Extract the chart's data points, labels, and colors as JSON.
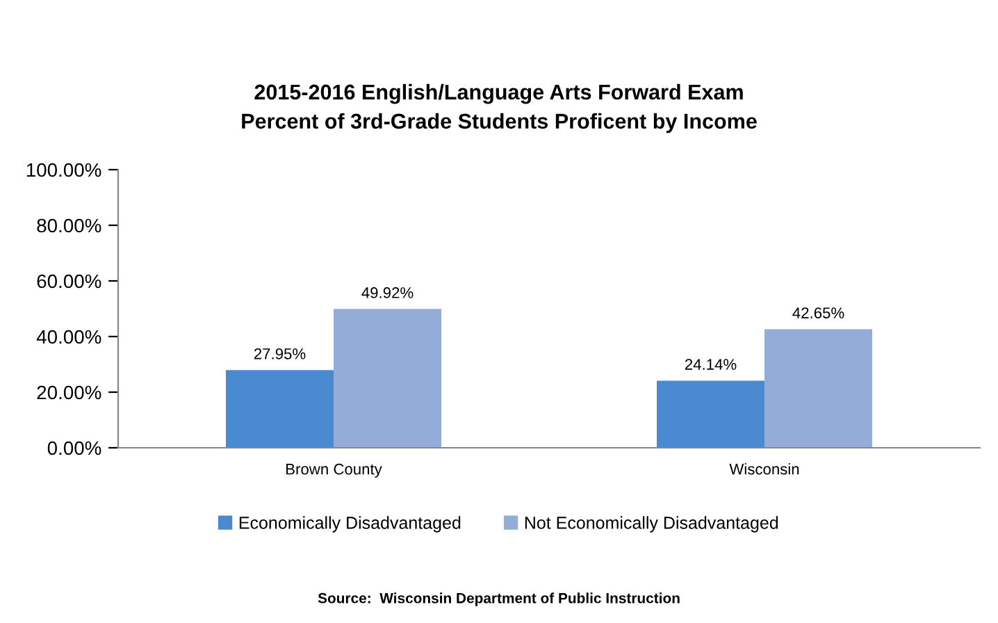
{
  "chart_data": {
    "type": "bar",
    "title": "2015-2016 English/Language Arts Forward Exam\nPercent of 3rd-Grade Students Proficent by Income",
    "categories": [
      "Brown County",
      "Wisconsin"
    ],
    "series": [
      {
        "name": "Economically Disadvantaged",
        "color": "#4a8ad0",
        "values": [
          27.95,
          24.14
        ],
        "value_labels": [
          "27.95%",
          "24.14%"
        ]
      },
      {
        "name": "Not Economically Disadvantaged",
        "color": "#94acd8",
        "values": [
          49.92,
          42.65
        ],
        "value_labels": [
          "49.92%",
          "42.65%"
        ]
      }
    ],
    "ylim": [
      0,
      100
    ],
    "yticks": [
      {
        "value": 0,
        "label": "0.00%"
      },
      {
        "value": 20,
        "label": "20.00%"
      },
      {
        "value": 40,
        "label": "40.00%"
      },
      {
        "value": 60,
        "label": "60.00%"
      },
      {
        "value": 80,
        "label": "80.00%"
      },
      {
        "value": 100,
        "label": "100.00%"
      }
    ],
    "grid": false,
    "legend": "bottom",
    "annotations": [
      "Source:  Wisconsin Department of Public Instruction"
    ]
  }
}
